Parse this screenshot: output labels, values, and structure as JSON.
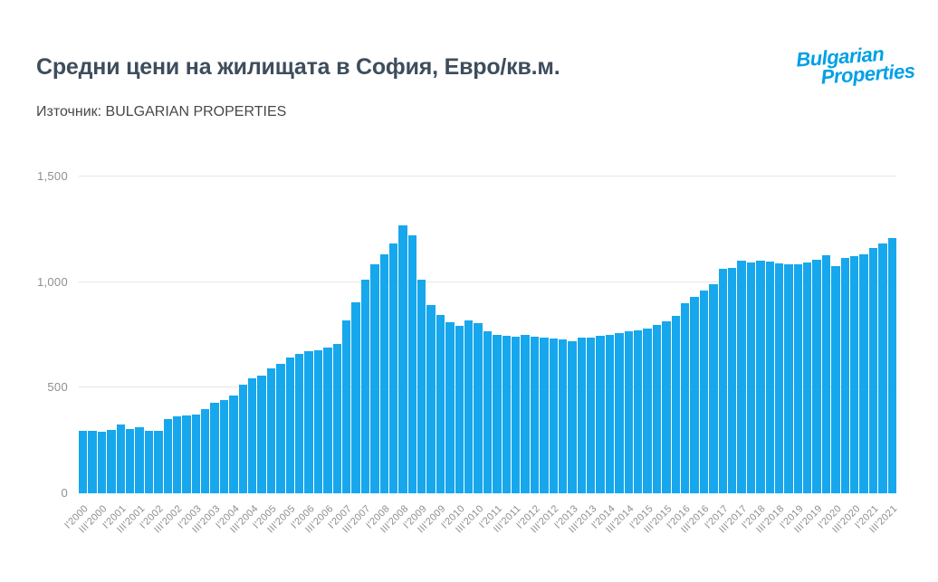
{
  "header": {
    "title": "Средни цени на жилищата в София, Евро/кв.м.",
    "source": "Източник: BULGARIAN PROPERTIES"
  },
  "logo": {
    "line1": "Bulgarian",
    "line2": "Properties",
    "color": "#00A0E6"
  },
  "colors": {
    "bar": "#17A7EC",
    "title_text": "#3E4D5C",
    "axis_text": "#8E8E8E",
    "gridline": "#E6E6E6",
    "background": "#FFFFFF"
  },
  "chart_data": {
    "type": "bar",
    "title": "Средни цени на жилищата в София, Евро/кв.м.",
    "subtitle": "Източник: BULGARIAN PROPERTIES",
    "xlabel": "",
    "ylabel": "",
    "ylim": [
      0,
      1500
    ],
    "grid": "horizontal-only",
    "legend": "none",
    "bar_color": "#17A7EC",
    "yticks": [
      {
        "value": 0,
        "label": "0"
      },
      {
        "value": 500,
        "label": "500"
      },
      {
        "value": 1000,
        "label": "1,000"
      },
      {
        "value": 1500,
        "label": "1,500"
      }
    ],
    "xtick_every": 2,
    "xtick_labels": [
      "I'2000",
      "III'2000",
      "I'2001",
      "III'2001",
      "I'2002",
      "III'2002",
      "I'2003",
      "III'2003",
      "I'2004",
      "III'2004",
      "I'2005",
      "III'2005",
      "I'2006",
      "III'2006",
      "I'2007",
      "III'2007",
      "I'2008",
      "III'2008",
      "I'2009",
      "III'2009",
      "I'2010",
      "III'2010",
      "I'2011",
      "III'2011",
      "I'2012",
      "III'2012",
      "I'2013",
      "III'2013",
      "I'2014",
      "III'2014",
      "I'2015",
      "III'2015",
      "I'2016",
      "III'2016",
      "I'2017",
      "III'2017",
      "I'2018",
      "III'2018",
      "I'2019",
      "III'2019",
      "I'2020",
      "III'2020",
      "I'2021",
      "III'2021"
    ],
    "categories": [
      "I'2000",
      "II'2000",
      "III'2000",
      "IV'2000",
      "I'2001",
      "II'2001",
      "III'2001",
      "IV'2001",
      "I'2002",
      "II'2002",
      "III'2002",
      "IV'2002",
      "I'2003",
      "II'2003",
      "III'2003",
      "IV'2003",
      "I'2004",
      "II'2004",
      "III'2004",
      "IV'2004",
      "I'2005",
      "II'2005",
      "III'2005",
      "IV'2005",
      "I'2006",
      "II'2006",
      "III'2006",
      "IV'2006",
      "I'2007",
      "II'2007",
      "III'2007",
      "IV'2007",
      "I'2008",
      "II'2008",
      "III'2008",
      "IV'2008",
      "I'2009",
      "II'2009",
      "III'2009",
      "IV'2009",
      "I'2010",
      "II'2010",
      "III'2010",
      "IV'2010",
      "I'2011",
      "II'2011",
      "III'2011",
      "IV'2011",
      "I'2012",
      "II'2012",
      "III'2012",
      "IV'2012",
      "I'2013",
      "II'2013",
      "III'2013",
      "IV'2013",
      "I'2014",
      "II'2014",
      "III'2014",
      "IV'2014",
      "I'2015",
      "II'2015",
      "III'2015",
      "IV'2015",
      "I'2016",
      "II'2016",
      "III'2016",
      "IV'2016",
      "I'2017",
      "II'2017",
      "III'2017",
      "IV'2017",
      "I'2018",
      "II'2018",
      "III'2018",
      "IV'2018",
      "I'2019",
      "II'2019",
      "III'2019",
      "IV'2019",
      "I'2020",
      "II'2020",
      "III'2020",
      "IV'2020",
      "I'2021",
      "II'2021",
      "III'2021"
    ],
    "values": [
      295,
      295,
      292,
      298,
      326,
      305,
      312,
      296,
      295,
      350,
      365,
      370,
      375,
      397,
      430,
      443,
      463,
      514,
      545,
      558,
      591,
      615,
      645,
      658,
      674,
      679,
      688,
      708,
      818,
      905,
      1010,
      1085,
      1130,
      1185,
      1268,
      1222,
      1012,
      892,
      846,
      810,
      793,
      820,
      805,
      766,
      749,
      744,
      740,
      751,
      741,
      738,
      732,
      727,
      722,
      737,
      739,
      745,
      752,
      760,
      768,
      773,
      782,
      796,
      813,
      839,
      901,
      931,
      958,
      988,
      1063,
      1067,
      1102,
      1092,
      1100,
      1098,
      1090,
      1084,
      1085,
      1092,
      1104,
      1126,
      1076,
      1113,
      1124,
      1133,
      1162,
      1184,
      1210
    ]
  }
}
